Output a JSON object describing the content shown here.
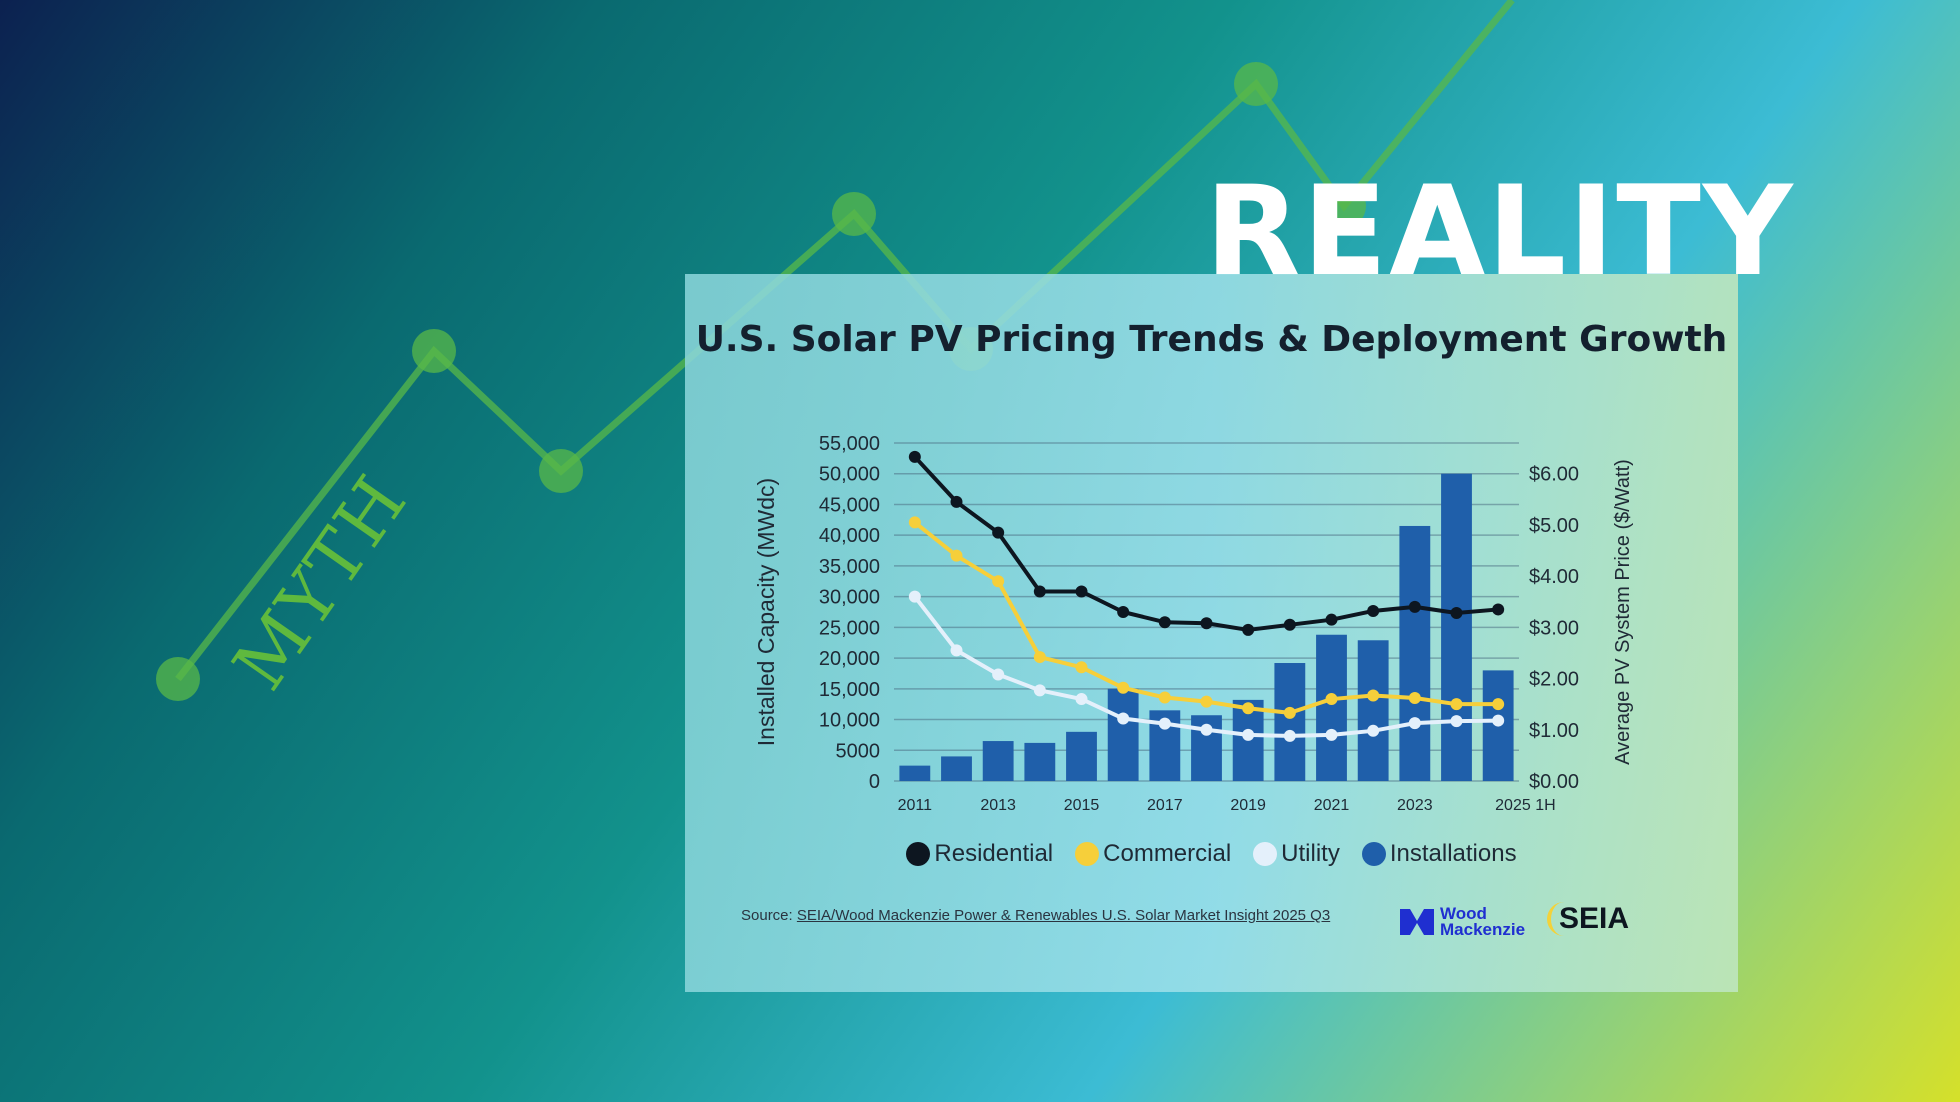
{
  "hero": {
    "myth": "MYTH",
    "reality": "REALITY"
  },
  "colors": {
    "residential": "#0d1620",
    "commercial": "#f6cf3a",
    "utility": "#e4f0fb",
    "installations": "#1f5faa",
    "deco_line": "#58b848"
  },
  "chart_data": {
    "type": "bar+line",
    "title": "U.S. Solar PV Pricing Trends & Deployment Growth",
    "categories": [
      "2011",
      "2012",
      "2013",
      "2014",
      "2015",
      "2016",
      "2017",
      "2018",
      "2019",
      "2020",
      "2021",
      "2022",
      "2023",
      "2024",
      "2025 1H"
    ],
    "x_tick_labels": [
      "2011",
      "2013",
      "2015",
      "2017",
      "2019",
      "2021",
      "2023",
      "2025 1H"
    ],
    "ylabel": "Installed Capacity (MWdc)",
    "y2label": "Average PV System Price ($/Watt)",
    "ylim": [
      0,
      55000
    ],
    "y2lim": [
      0,
      6.6
    ],
    "y_ticks": [
      "0",
      "5000",
      "10,000",
      "15,000",
      "20,000",
      "25,000",
      "30,000",
      "35,000",
      "40,000",
      "45,000",
      "50,000",
      "55,000"
    ],
    "y2_ticks": [
      "$0.00",
      "$1.00",
      "$2.00",
      "$3.00",
      "$4.00",
      "$5.00",
      "$6.00"
    ],
    "grid": true,
    "legend_position": "bottom",
    "series": [
      {
        "name": "Installations",
        "kind": "bar",
        "axis": "left",
        "values": [
          2500,
          4000,
          6500,
          6200,
          8000,
          15000,
          11500,
          10700,
          13200,
          19200,
          23800,
          22900,
          41500,
          50000,
          18000
        ]
      },
      {
        "name": "Residential",
        "kind": "line",
        "axis": "right",
        "values": [
          6.33,
          5.45,
          4.85,
          3.7,
          3.7,
          3.3,
          3.1,
          3.08,
          2.95,
          3.05,
          3.15,
          3.32,
          3.4,
          3.28,
          3.35
        ]
      },
      {
        "name": "Commercial",
        "kind": "line",
        "axis": "right",
        "values": [
          5.05,
          4.4,
          3.9,
          2.42,
          2.22,
          1.82,
          1.63,
          1.55,
          1.42,
          1.33,
          1.6,
          1.67,
          1.62,
          1.5,
          1.5
        ]
      },
      {
        "name": "Utility",
        "kind": "line",
        "axis": "right",
        "values": [
          3.6,
          2.55,
          2.08,
          1.77,
          1.6,
          1.22,
          1.12,
          1.0,
          0.9,
          0.88,
          0.9,
          0.98,
          1.13,
          1.17,
          1.18
        ]
      }
    ]
  },
  "legend": [
    {
      "label": "Residential"
    },
    {
      "label": "Commercial"
    },
    {
      "label": "Utility"
    },
    {
      "label": "Installations"
    }
  ],
  "source": {
    "prefix": "Source: ",
    "link": "SEIA/Wood Mackenzie Power & Renewables U.S. Solar Market Insight 2025 Q3"
  },
  "logos": {
    "wood_mackenzie": "Wood Mackenzie",
    "seia": "SEIA"
  }
}
